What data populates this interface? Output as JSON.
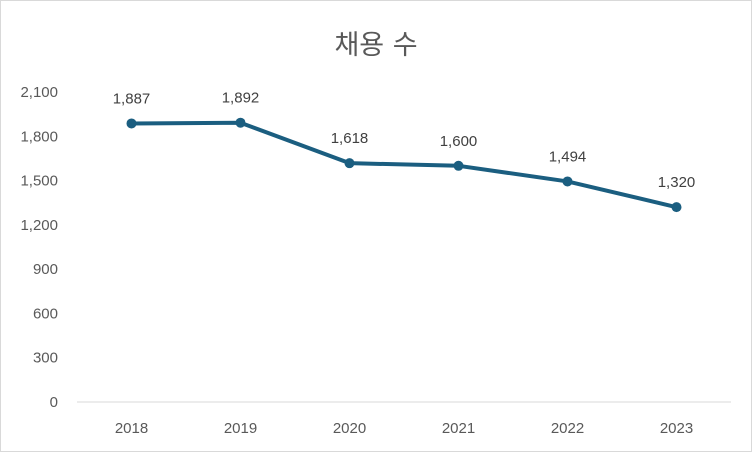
{
  "chart_data": {
    "type": "line",
    "title": "채용 수",
    "xlabel": "",
    "ylabel": "",
    "categories": [
      "2018",
      "2019",
      "2020",
      "2021",
      "2022",
      "2023"
    ],
    "series": [
      {
        "values": [
          1887,
          1892,
          1618,
          1600,
          1494,
          1320
        ],
        "labels": [
          "1,887",
          "1,892",
          "1,618",
          "1,600",
          "1,494",
          "1,320"
        ],
        "color": "#1b5e80"
      }
    ],
    "ylim": [
      0,
      2100
    ],
    "yticks": [
      0,
      300,
      600,
      900,
      1200,
      1500,
      1800,
      2100
    ],
    "ytick_labels": [
      "0",
      "300",
      "600",
      "900",
      "1,200",
      "1,500",
      "1,800",
      "2,100"
    ],
    "grid": false,
    "legend": "none"
  }
}
